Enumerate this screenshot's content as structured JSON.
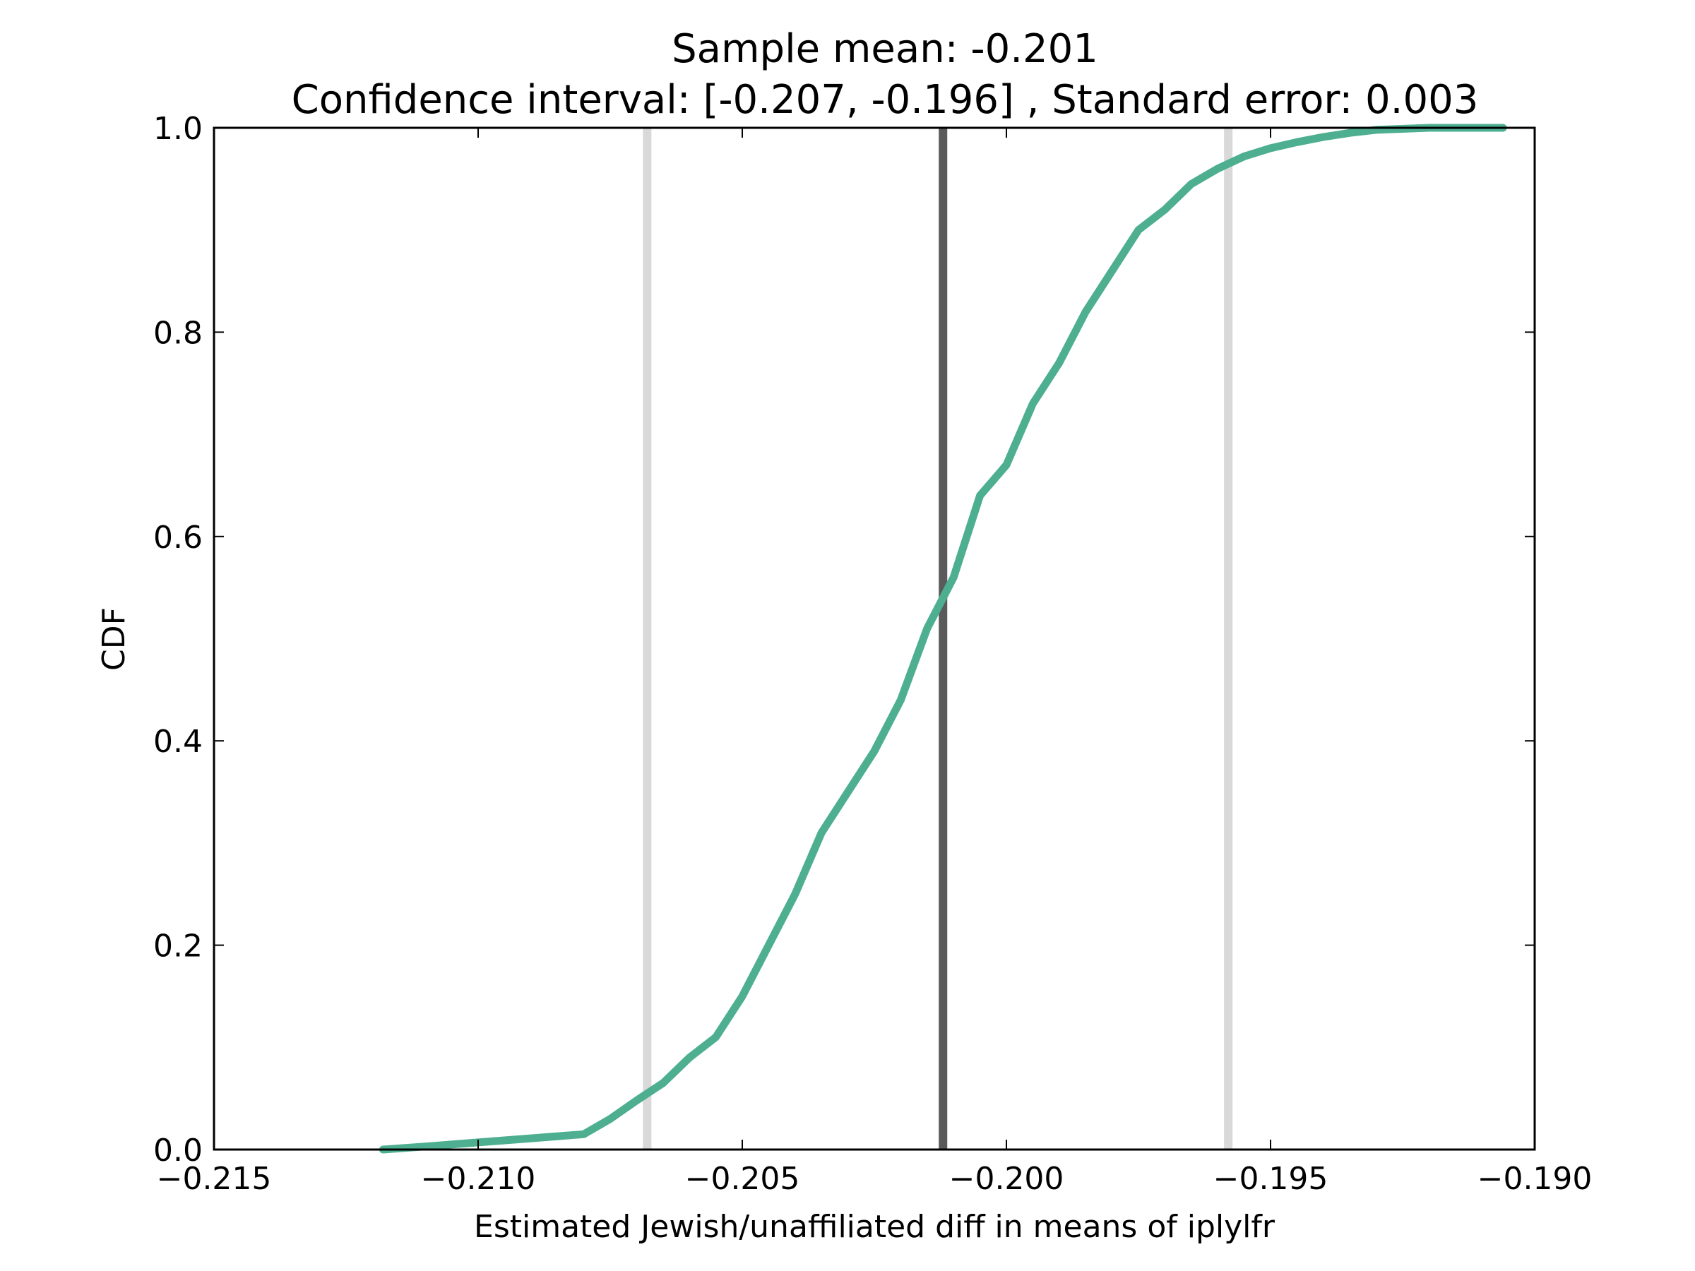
{
  "chart_data": {
    "type": "line",
    "title_line1": "Sample mean: -0.201",
    "title_line2": "Confidence interval: [-0.207, -0.196] , Standard error: 0.003",
    "xlabel": "Estimated Jewish/unaffiliated diff in means of iplylfr",
    "ylabel": "CDF",
    "xlim": [
      -0.215,
      -0.19
    ],
    "ylim": [
      0.0,
      1.0
    ],
    "x_ticks": [
      -0.215,
      -0.21,
      -0.205,
      -0.2,
      -0.195,
      -0.19
    ],
    "x_tick_labels": [
      "−0.215",
      "−0.210",
      "−0.205",
      "−0.200",
      "−0.195",
      "−0.190"
    ],
    "y_ticks": [
      0.0,
      0.2,
      0.4,
      0.6,
      0.8,
      1.0
    ],
    "y_tick_labels": [
      "0.0",
      "0.2",
      "0.4",
      "0.6",
      "0.8",
      "1.0"
    ],
    "grid": false,
    "series": [
      {
        "color": "#4daf8f",
        "x": [
          -0.2118,
          -0.211,
          -0.21,
          -0.209,
          -0.208,
          -0.2075,
          -0.207,
          -0.2065,
          -0.206,
          -0.2055,
          -0.205,
          -0.2045,
          -0.204,
          -0.2035,
          -0.203,
          -0.2025,
          -0.202,
          -0.2015,
          -0.201,
          -0.2005,
          -0.2,
          -0.1995,
          -0.199,
          -0.1985,
          -0.198,
          -0.1975,
          -0.197,
          -0.1965,
          -0.196,
          -0.1955,
          -0.195,
          -0.1945,
          -0.194,
          -0.1935,
          -0.193,
          -0.192,
          -0.1906
        ],
        "y": [
          0.0,
          0.003,
          0.007,
          0.011,
          0.015,
          0.03,
          0.048,
          0.065,
          0.09,
          0.11,
          0.15,
          0.2,
          0.25,
          0.31,
          0.35,
          0.39,
          0.44,
          0.51,
          0.56,
          0.64,
          0.67,
          0.73,
          0.77,
          0.82,
          0.86,
          0.9,
          0.92,
          0.945,
          0.96,
          0.972,
          0.98,
          0.986,
          0.991,
          0.995,
          0.998,
          1.0,
          1.0
        ]
      }
    ],
    "vertical_lines": [
      {
        "x": -0.2068,
        "color": "#d9d9d9"
      },
      {
        "x": -0.2012,
        "color": "#5a5a5a"
      },
      {
        "x": -0.1958,
        "color": "#d9d9d9"
      }
    ]
  }
}
